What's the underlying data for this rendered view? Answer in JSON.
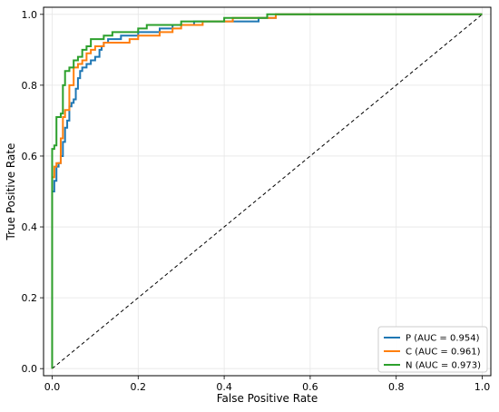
{
  "chart_data": {
    "type": "line",
    "title": "",
    "xlabel": "False Positive Rate",
    "ylabel": "True Positive Rate",
    "xlim": [
      -0.02,
      1.02
    ],
    "ylim": [
      -0.02,
      1.02
    ],
    "xticks": [
      0.0,
      0.2,
      0.4,
      0.6,
      0.8,
      1.0
    ],
    "yticks": [
      0.0,
      0.2,
      0.4,
      0.6,
      0.8,
      1.0
    ],
    "xtick_labels": [
      "0.0",
      "0.2",
      "0.4",
      "0.6",
      "0.8",
      "1.0"
    ],
    "ytick_labels": [
      "0.0",
      "0.2",
      "0.4",
      "0.6",
      "0.8",
      "1.0"
    ],
    "grid": true,
    "legend_position": "lower-right",
    "series": [
      {
        "name": "P (AUC = 0.954)",
        "color": "#1f77b4",
        "x": [
          0,
          0,
          0.005,
          0.005,
          0.01,
          0.01,
          0.015,
          0.015,
          0.02,
          0.02,
          0.025,
          0.025,
          0.03,
          0.03,
          0.035,
          0.035,
          0.04,
          0.04,
          0.045,
          0.045,
          0.05,
          0.05,
          0.055,
          0.055,
          0.06,
          0.06,
          0.065,
          0.065,
          0.07,
          0.07,
          0.08,
          0.08,
          0.09,
          0.09,
          0.1,
          0.1,
          0.11,
          0.11,
          0.115,
          0.115,
          0.12,
          0.12,
          0.13,
          0.13,
          0.16,
          0.16,
          0.18,
          0.18,
          0.2,
          0.2,
          0.22,
          0.22,
          0.25,
          0.25,
          0.28,
          0.28,
          0.3,
          0.3,
          0.33,
          0.33,
          0.38,
          0.38,
          0.4,
          0.4,
          0.45,
          0.45,
          0.48,
          0.48,
          0.52,
          0.52,
          1.0
        ],
        "y": [
          0,
          0.5,
          0.5,
          0.53,
          0.53,
          0.57,
          0.57,
          0.58,
          0.58,
          0.6,
          0.6,
          0.64,
          0.64,
          0.68,
          0.68,
          0.7,
          0.7,
          0.74,
          0.74,
          0.75,
          0.75,
          0.76,
          0.76,
          0.79,
          0.79,
          0.82,
          0.82,
          0.84,
          0.84,
          0.85,
          0.85,
          0.86,
          0.86,
          0.87,
          0.87,
          0.88,
          0.88,
          0.9,
          0.9,
          0.91,
          0.91,
          0.92,
          0.92,
          0.93,
          0.93,
          0.94,
          0.94,
          0.94,
          0.94,
          0.95,
          0.95,
          0.95,
          0.95,
          0.96,
          0.96,
          0.97,
          0.97,
          0.97,
          0.97,
          0.98,
          0.98,
          0.98,
          0.98,
          0.98,
          0.98,
          0.98,
          0.98,
          0.99,
          0.99,
          1.0,
          1.0
        ]
      },
      {
        "name": "C (AUC = 0.961)",
        "color": "#ff7f0e",
        "x": [
          0,
          0,
          0.005,
          0.005,
          0.01,
          0.01,
          0.02,
          0.02,
          0.025,
          0.025,
          0.03,
          0.03,
          0.04,
          0.04,
          0.05,
          0.05,
          0.06,
          0.06,
          0.07,
          0.07,
          0.08,
          0.08,
          0.09,
          0.09,
          0.1,
          0.1,
          0.12,
          0.12,
          0.15,
          0.15,
          0.18,
          0.18,
          0.2,
          0.2,
          0.22,
          0.22,
          0.25,
          0.25,
          0.28,
          0.28,
          0.3,
          0.3,
          0.35,
          0.35,
          0.38,
          0.38,
          0.42,
          0.42,
          0.48,
          0.48,
          0.52,
          0.52,
          1.0
        ],
        "y": [
          0,
          0.54,
          0.54,
          0.57,
          0.57,
          0.58,
          0.58,
          0.65,
          0.65,
          0.71,
          0.71,
          0.73,
          0.73,
          0.8,
          0.8,
          0.85,
          0.85,
          0.86,
          0.86,
          0.87,
          0.87,
          0.89,
          0.89,
          0.9,
          0.9,
          0.91,
          0.91,
          0.92,
          0.92,
          0.92,
          0.92,
          0.93,
          0.93,
          0.94,
          0.94,
          0.94,
          0.94,
          0.95,
          0.95,
          0.96,
          0.96,
          0.97,
          0.97,
          0.98,
          0.98,
          0.98,
          0.98,
          0.99,
          0.99,
          0.99,
          0.99,
          1.0,
          1.0
        ]
      },
      {
        "name": "N (AUC = 0.973)",
        "color": "#2ca02c",
        "x": [
          0,
          0,
          0.005,
          0.005,
          0.01,
          0.01,
          0.02,
          0.02,
          0.025,
          0.025,
          0.03,
          0.03,
          0.04,
          0.04,
          0.05,
          0.05,
          0.06,
          0.06,
          0.07,
          0.07,
          0.08,
          0.08,
          0.09,
          0.09,
          0.1,
          0.1,
          0.12,
          0.12,
          0.14,
          0.14,
          0.16,
          0.16,
          0.2,
          0.2,
          0.22,
          0.22,
          0.28,
          0.28,
          0.3,
          0.3,
          0.35,
          0.35,
          0.4,
          0.4,
          0.45,
          0.45,
          0.5,
          0.5,
          1.0
        ],
        "y": [
          0,
          0.62,
          0.62,
          0.63,
          0.63,
          0.71,
          0.71,
          0.72,
          0.72,
          0.8,
          0.8,
          0.84,
          0.84,
          0.85,
          0.85,
          0.87,
          0.87,
          0.88,
          0.88,
          0.9,
          0.9,
          0.91,
          0.91,
          0.93,
          0.93,
          0.93,
          0.93,
          0.94,
          0.94,
          0.95,
          0.95,
          0.95,
          0.95,
          0.96,
          0.96,
          0.97,
          0.97,
          0.97,
          0.97,
          0.98,
          0.98,
          0.98,
          0.98,
          0.99,
          0.99,
          0.99,
          0.99,
          1.0,
          1.0
        ]
      }
    ],
    "reference_line": {
      "x": [
        0,
        1
      ],
      "y": [
        0,
        1
      ],
      "color": "#000000",
      "style": "dashed"
    }
  }
}
